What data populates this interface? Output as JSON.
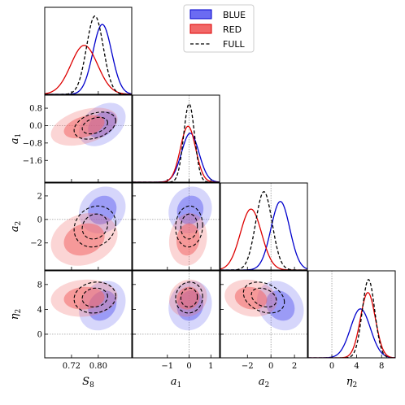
{
  "chart_data": {
    "type": "corner",
    "parameters": [
      {
        "key": "S8",
        "label_main": "S",
        "label_sub": "8",
        "range": [
          0.64,
          0.9
        ],
        "ticks": [
          0.72,
          0.8
        ],
        "tick_labels": [
          "0.72",
          "0.80"
        ]
      },
      {
        "key": "a1",
        "label_main": "a",
        "label_sub": "1",
        "range": [
          -2.6,
          1.4
        ],
        "ticks": [
          -1,
          0,
          1
        ],
        "tick_labels": [
          "−1",
          "0",
          "1"
        ]
      },
      {
        "key": "a2",
        "label_main": "a",
        "label_sub": "2",
        "range": [
          -4.3,
          3.1
        ],
        "ticks": [
          -2,
          0,
          2
        ],
        "tick_labels": [
          "−2",
          "0",
          "2"
        ]
      },
      {
        "key": "eta2",
        "label_main": "η",
        "label_sub": "2",
        "range": [
          -3.8,
          10.2
        ],
        "ticks": [
          0,
          4,
          8
        ],
        "tick_labels": [
          "0",
          "4",
          "8"
        ]
      }
    ],
    "y_ticks": {
      "a1": {
        "ticks": [
          0.8,
          0.0,
          -0.8,
          -1.6
        ],
        "tick_labels": [
          "0.8",
          "0.0",
          "−0.8",
          "−1.6"
        ]
      },
      "a2": {
        "ticks": [
          2,
          0,
          -2
        ],
        "tick_labels": [
          "2",
          "0",
          "−2"
        ]
      },
      "eta2": {
        "ticks": [
          8,
          4,
          0
        ],
        "tick_labels": [
          "8",
          "4",
          "0"
        ]
      }
    },
    "reference_values": {
      "a1": 0,
      "a2": 0,
      "eta2": 0
    },
    "series": [
      {
        "name": "BLUE",
        "color": "#0000cc",
        "fill": "#6b6bf2",
        "style": "solid",
        "means": {
          "S8": 0.812,
          "a1": 0.05,
          "a2": 0.8,
          "eta2": 4.6
        },
        "sigmas": {
          "S8": 0.028,
          "a1": 0.4,
          "a2": 0.8,
          "eta2": 1.6
        },
        "corr": {
          "a1_S8": 0.35,
          "a2_S8": 0.15,
          "a2_a1": 0.1,
          "eta2_S8": 0.2,
          "eta2_a1": 0.1,
          "eta2_a2": -0.2
        }
      },
      {
        "name": "RED",
        "color": "#dd0000",
        "fill": "#f26868",
        "style": "solid",
        "means": {
          "S8": 0.758,
          "a1": -0.05,
          "a2": -1.7,
          "eta2": 5.8
        },
        "sigmas": {
          "S8": 0.04,
          "a1": 0.35,
          "a2": 0.9,
          "eta2": 1.2
        },
        "corr": {
          "a1_S8": 0.4,
          "a2_S8": 0.2,
          "a2_a1": 0.1,
          "eta2_S8": 0.1,
          "eta2_a1": 0.1,
          "eta2_a2": -0.15
        }
      },
      {
        "name": "FULL",
        "color": "#000000",
        "fill": "none",
        "style": "dashed",
        "means": {
          "S8": 0.79,
          "a1": 0.0,
          "a2": -0.6,
          "eta2": 5.9
        },
        "sigmas": {
          "S8": 0.025,
          "a1": 0.25,
          "a2": 0.7,
          "eta2": 1.0
        },
        "corr": {
          "a1_S8": 0.35,
          "a2_S8": 0.15,
          "a2_a1": 0.05,
          "eta2_S8": 0.1,
          "eta2_a1": 0.05,
          "eta2_a2": -0.3
        }
      }
    ],
    "legend": {
      "position": "top-center",
      "entries": [
        "BLUE",
        "RED",
        "FULL"
      ]
    }
  }
}
